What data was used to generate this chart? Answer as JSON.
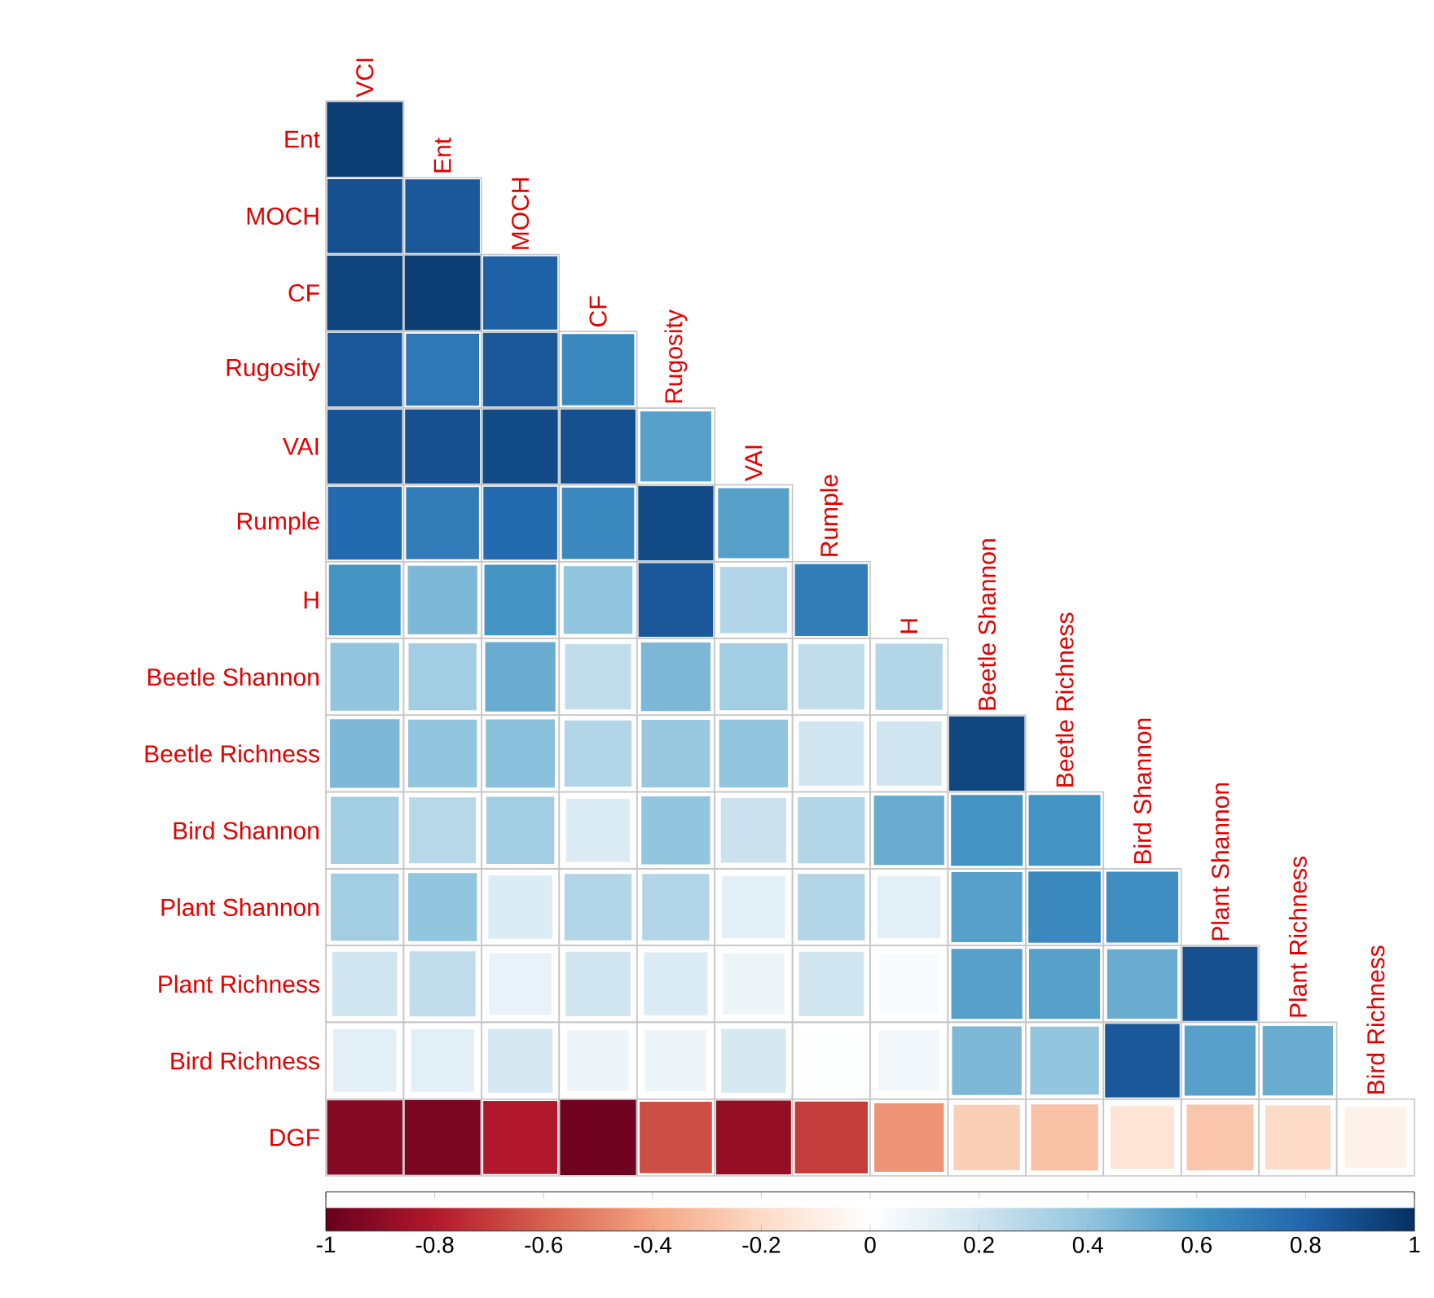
{
  "chart_data": {
    "type": "heatmap",
    "categories": [
      "VCI",
      "Ent",
      "MOCH",
      "CF",
      "Rugosity",
      "VAI",
      "Rumple",
      "H",
      "Beetle Shannon",
      "Beetle Richness",
      "Bird Shannon",
      "Plant Shannon",
      "Plant Richness",
      "Bird Richness"
    ],
    "y_categories": [
      "Ent",
      "MOCH",
      "CF",
      "Rugosity",
      "VAI",
      "Rumple",
      "H",
      "Beetle Shannon",
      "Beetle Richness",
      "Bird Shannon",
      "Plant Shannon",
      "Plant Richness",
      "Bird Richness",
      "DGF"
    ],
    "cells": [
      [
        0.95,
        null,
        null,
        null,
        null,
        null,
        null,
        null,
        null,
        null,
        null,
        null,
        null,
        null
      ],
      [
        0.88,
        0.85,
        null,
        null,
        null,
        null,
        null,
        null,
        null,
        null,
        null,
        null,
        null,
        null
      ],
      [
        0.93,
        0.95,
        0.82,
        null,
        null,
        null,
        null,
        null,
        null,
        null,
        null,
        null,
        null,
        null
      ],
      [
        0.85,
        0.72,
        0.85,
        0.65,
        null,
        null,
        null,
        null,
        null,
        null,
        null,
        null,
        null,
        null
      ],
      [
        0.87,
        0.88,
        0.9,
        0.88,
        0.55,
        null,
        null,
        null,
        null,
        null,
        null,
        null,
        null,
        null
      ],
      [
        0.78,
        0.7,
        0.78,
        0.65,
        0.9,
        0.55,
        null,
        null,
        null,
        null,
        null,
        null,
        null,
        null
      ],
      [
        0.6,
        0.45,
        0.6,
        0.4,
        0.85,
        0.3,
        0.7,
        null,
        null,
        null,
        null,
        null,
        null,
        null
      ],
      [
        0.4,
        0.35,
        0.5,
        0.25,
        0.45,
        0.35,
        0.25,
        0.3,
        null,
        null,
        null,
        null,
        null,
        null
      ],
      [
        0.45,
        0.4,
        0.42,
        0.3,
        0.38,
        0.4,
        0.2,
        0.2,
        0.92,
        null,
        null,
        null,
        null,
        null
      ],
      [
        0.35,
        0.28,
        0.35,
        0.15,
        0.4,
        0.22,
        0.3,
        0.5,
        0.6,
        0.6,
        null,
        null,
        null,
        null
      ],
      [
        0.35,
        0.4,
        0.15,
        0.3,
        0.3,
        0.12,
        0.3,
        0.12,
        0.55,
        0.65,
        0.62,
        null,
        null,
        null
      ],
      [
        0.2,
        0.25,
        0.1,
        0.2,
        0.15,
        0.08,
        0.2,
        0.03,
        0.55,
        0.55,
        0.5,
        0.88,
        null,
        null
      ],
      [
        0.12,
        0.12,
        0.18,
        0.08,
        0.08,
        0.18,
        0.01,
        0.06,
        0.45,
        0.4,
        0.85,
        0.55,
        0.5,
        null
      ],
      [
        -0.92,
        -0.95,
        -0.8,
        -0.98,
        -0.65,
        -0.88,
        -0.7,
        -0.45,
        -0.25,
        -0.3,
        -0.15,
        -0.28,
        -0.2,
        -0.08
      ]
    ],
    "clim": [
      -1,
      1
    ],
    "cticks": [
      -1,
      -0.8,
      -0.6,
      -0.4,
      -0.2,
      0,
      0.2,
      0.4,
      0.6,
      0.8,
      1
    ]
  }
}
